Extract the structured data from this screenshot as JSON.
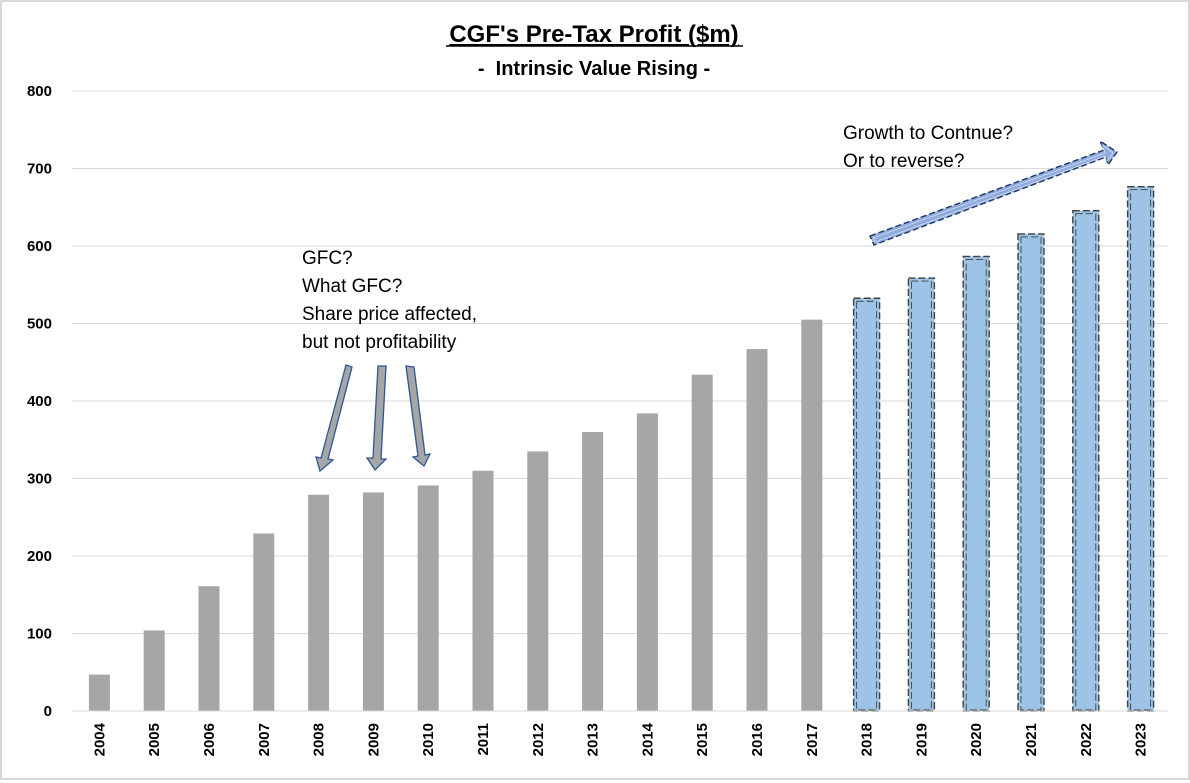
{
  "chart_data": {
    "type": "bar",
    "title": "CGF's Pre-Tax Profit ($m)",
    "subtitle": "-  Intrinsic Value Rising -",
    "xlabel": "",
    "ylabel": "",
    "ylim": [
      0,
      800
    ],
    "yticks": [
      0,
      100,
      200,
      300,
      400,
      500,
      600,
      700,
      800
    ],
    "grid": true,
    "legend": "none",
    "categories": [
      "2004",
      "2005",
      "2006",
      "2007",
      "2008",
      "2009",
      "2010",
      "2011",
      "2012",
      "2013",
      "2014",
      "2015",
      "2016",
      "2017",
      "2018",
      "2019",
      "2020",
      "2021",
      "2022",
      "2023"
    ],
    "series": [
      {
        "values": [
          47,
          104,
          161,
          229,
          279,
          282,
          291,
          310,
          335,
          360,
          384,
          434,
          467,
          505,
          530,
          556,
          584,
          613,
          643,
          674
        ]
      }
    ],
    "colors": {
      "actual": "#a6a6a6",
      "forecast": "#9dc3e6",
      "forecast_border": "#404040",
      "arrow_gray": "#a6a6a6",
      "arrow_blue": "#8faadc",
      "arrow_border": "#2f5597",
      "grid": "#d9d9d9"
    },
    "forecast_from": "2018",
    "annotations": [
      {
        "id": "gfc",
        "lines": [
          "GFC?",
          "What GFC?",
          "Share price affected,",
          "but not profitability"
        ]
      },
      {
        "id": "growth",
        "lines": [
          "Growth to Contnue?",
          "Or to reverse?"
        ]
      }
    ]
  }
}
